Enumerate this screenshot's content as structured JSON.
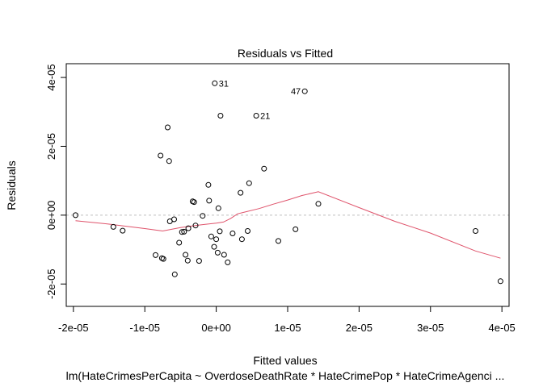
{
  "chart_data": {
    "type": "scatter",
    "title": "Residuals vs Fitted",
    "xlabel": "Fitted values",
    "ylabel": "Residuals",
    "subtitle": "lm(HateCrimesPerCapita ~ OverdoseDeathRate * HateCrimePop * HateCrimeAgenci ...",
    "xlim": [
      -2.1e-05,
      4.1e-05
    ],
    "ylim": [
      -2.65e-05,
      4.4e-05
    ],
    "xticks": [
      -2e-05,
      -1e-05,
      0,
      1e-05,
      2e-05,
      3e-05,
      4e-05
    ],
    "xtick_labels": [
      "-2e-05",
      "-1e-05",
      "0e+00",
      "1e-05",
      "2e-05",
      "3e-05",
      "4e-05"
    ],
    "yticks": [
      -2e-05,
      0,
      2e-05,
      4e-05
    ],
    "ytick_labels": [
      "-2e-05",
      "0e+00",
      "2e-05",
      "4e-05"
    ],
    "zero_line": 0,
    "grid": false,
    "colors": {
      "smooth": "#DF536B",
      "zero_line": "#BEBEBE",
      "points": "#000000"
    },
    "points": [
      {
        "x": -1.97e-05,
        "y": 0.0
      },
      {
        "x": -1.44e-05,
        "y": -3.4e-06
      },
      {
        "x": -1.31e-05,
        "y": -4.5e-06
      },
      {
        "x": -8.5e-06,
        "y": -1.16e-05
      },
      {
        "x": -7.6e-06,
        "y": -1.25e-05
      },
      {
        "x": -7.4e-06,
        "y": -1.27e-05
      },
      {
        "x": -7.8e-06,
        "y": 1.73e-05
      },
      {
        "x": -6.8e-06,
        "y": 2.55e-05
      },
      {
        "x": -6.6e-06,
        "y": 1.57e-05
      },
      {
        "x": -6.5e-06,
        "y": -1.8e-06
      },
      {
        "x": -5.9e-06,
        "y": -1.2e-06
      },
      {
        "x": -5.8e-06,
        "y": -1.72e-05
      },
      {
        "x": -5.2e-06,
        "y": -8e-06
      },
      {
        "x": -4.8e-06,
        "y": -4.9e-06
      },
      {
        "x": -4.5e-06,
        "y": -4.8e-06
      },
      {
        "x": -4.3e-06,
        "y": -1.15e-05
      },
      {
        "x": -4e-06,
        "y": -1.32e-05
      },
      {
        "x": -3.9e-06,
        "y": -3.8e-06
      },
      {
        "x": -3.3e-06,
        "y": 4e-06
      },
      {
        "x": -3.1e-06,
        "y": 3.8e-06
      },
      {
        "x": -2.9e-06,
        "y": -3e-06
      },
      {
        "x": -2.4e-06,
        "y": -1.33e-05
      },
      {
        "x": -1.9e-06,
        "y": -2e-07
      },
      {
        "x": -1.1e-06,
        "y": 8.8e-06
      },
      {
        "x": -1e-06,
        "y": 4.2e-06
      },
      {
        "x": -7e-07,
        "y": -6.2e-06
      },
      {
        "x": -3e-07,
        "y": -9.2e-06
      },
      {
        "x": -2e-07,
        "y": 3.83e-05
      },
      {
        "x": 0.0,
        "y": -7e-06
      },
      {
        "x": 2e-07,
        "y": -1.09e-05
      },
      {
        "x": 3e-07,
        "y": 2e-06
      },
      {
        "x": 5e-07,
        "y": -4.7e-06
      },
      {
        "x": 6e-07,
        "y": 2.89e-05
      },
      {
        "x": 1.1e-06,
        "y": -1.15e-05
      },
      {
        "x": 1.6e-06,
        "y": -1.37e-05
      },
      {
        "x": 2.3e-06,
        "y": -5.3e-06
      },
      {
        "x": 3.4e-06,
        "y": 6.5e-06
      },
      {
        "x": 3.6e-06,
        "y": -7e-06
      },
      {
        "x": 4.4e-06,
        "y": -4.6e-06
      },
      {
        "x": 4.6e-06,
        "y": 9.3e-06
      },
      {
        "x": 5.6e-06,
        "y": 2.89e-05
      },
      {
        "x": 6.7e-06,
        "y": 1.35e-05
      },
      {
        "x": 8.7e-06,
        "y": -7.5e-06
      },
      {
        "x": 1.11e-05,
        "y": -4.1e-06
      },
      {
        "x": 1.24e-05,
        "y": 3.6e-05
      },
      {
        "x": 1.43e-05,
        "y": 3.3e-06
      },
      {
        "x": 3.63e-05,
        "y": -4.6e-06
      },
      {
        "x": 3.98e-05,
        "y": -1.92e-05
      }
    ],
    "point_labels": [
      {
        "text": "31",
        "x": -2e-07,
        "y": 3.83e-05,
        "side": "right"
      },
      {
        "text": "21",
        "x": 5.6e-06,
        "y": 2.89e-05,
        "side": "right"
      },
      {
        "text": "47",
        "x": 1.24e-05,
        "y": 3.6e-05,
        "side": "left"
      }
    ],
    "smooth_line": [
      {
        "x": -1.97e-05,
        "y": -1.6e-06
      },
      {
        "x": -1.5e-05,
        "y": -2.6e-06
      },
      {
        "x": -1e-05,
        "y": -3.9e-06
      },
      {
        "x": -7.5e-06,
        "y": -4.6e-06
      },
      {
        "x": -5e-06,
        "y": -3.6e-06
      },
      {
        "x": -2.5e-06,
        "y": -2.9e-06
      },
      {
        "x": 0.0,
        "y": -2.3e-06
      },
      {
        "x": 1e-06,
        "y": -2e-06
      },
      {
        "x": 2e-06,
        "y": -1e-06
      },
      {
        "x": 3e-06,
        "y": 4e-07
      },
      {
        "x": 4e-06,
        "y": 9e-07
      },
      {
        "x": 6e-06,
        "y": 1.9e-06
      },
      {
        "x": 8e-06,
        "y": 3.2e-06
      },
      {
        "x": 1e-05,
        "y": 4.4e-06
      },
      {
        "x": 1.2e-05,
        "y": 5.7e-06
      },
      {
        "x": 1.43e-05,
        "y": 6.8e-06
      },
      {
        "x": 2e-05,
        "y": 2.2e-06
      },
      {
        "x": 2.5e-05,
        "y": -1.8e-06
      },
      {
        "x": 3e-05,
        "y": -5.2e-06
      },
      {
        "x": 3.63e-05,
        "y": -1.04e-05
      },
      {
        "x": 3.98e-05,
        "y": -1.25e-05
      }
    ]
  }
}
